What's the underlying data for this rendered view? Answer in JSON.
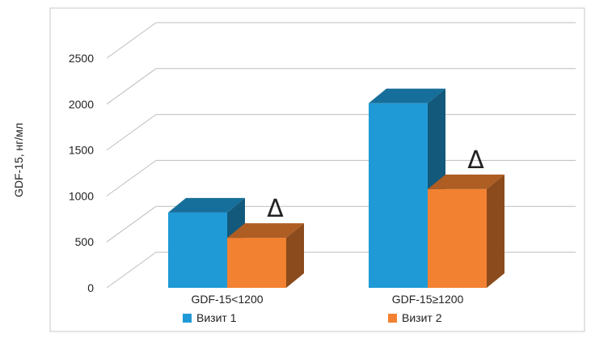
{
  "chart_data": {
    "type": "bar",
    "ylabel": "GDF-15, нг/мл",
    "xlabel": "",
    "ylim": [
      0,
      2500
    ],
    "yticks": [
      0,
      500,
      1000,
      1500,
      2000,
      2500
    ],
    "grid": true,
    "legend_position": "bottom",
    "categories": [
      "GDF-15<1200",
      "GDF-15≥1200"
    ],
    "series": [
      {
        "name": "Визит 1",
        "values": [
          820,
          2010
        ],
        "color": "#1f9ad6"
      },
      {
        "name": "Визит 2",
        "values": [
          545,
          1075
        ],
        "color": "#f28131"
      }
    ],
    "annotations": [
      {
        "text": "Δ",
        "category_index": 0,
        "series_index": 1
      },
      {
        "text": "Δ",
        "category_index": 1,
        "series_index": 1
      }
    ]
  }
}
